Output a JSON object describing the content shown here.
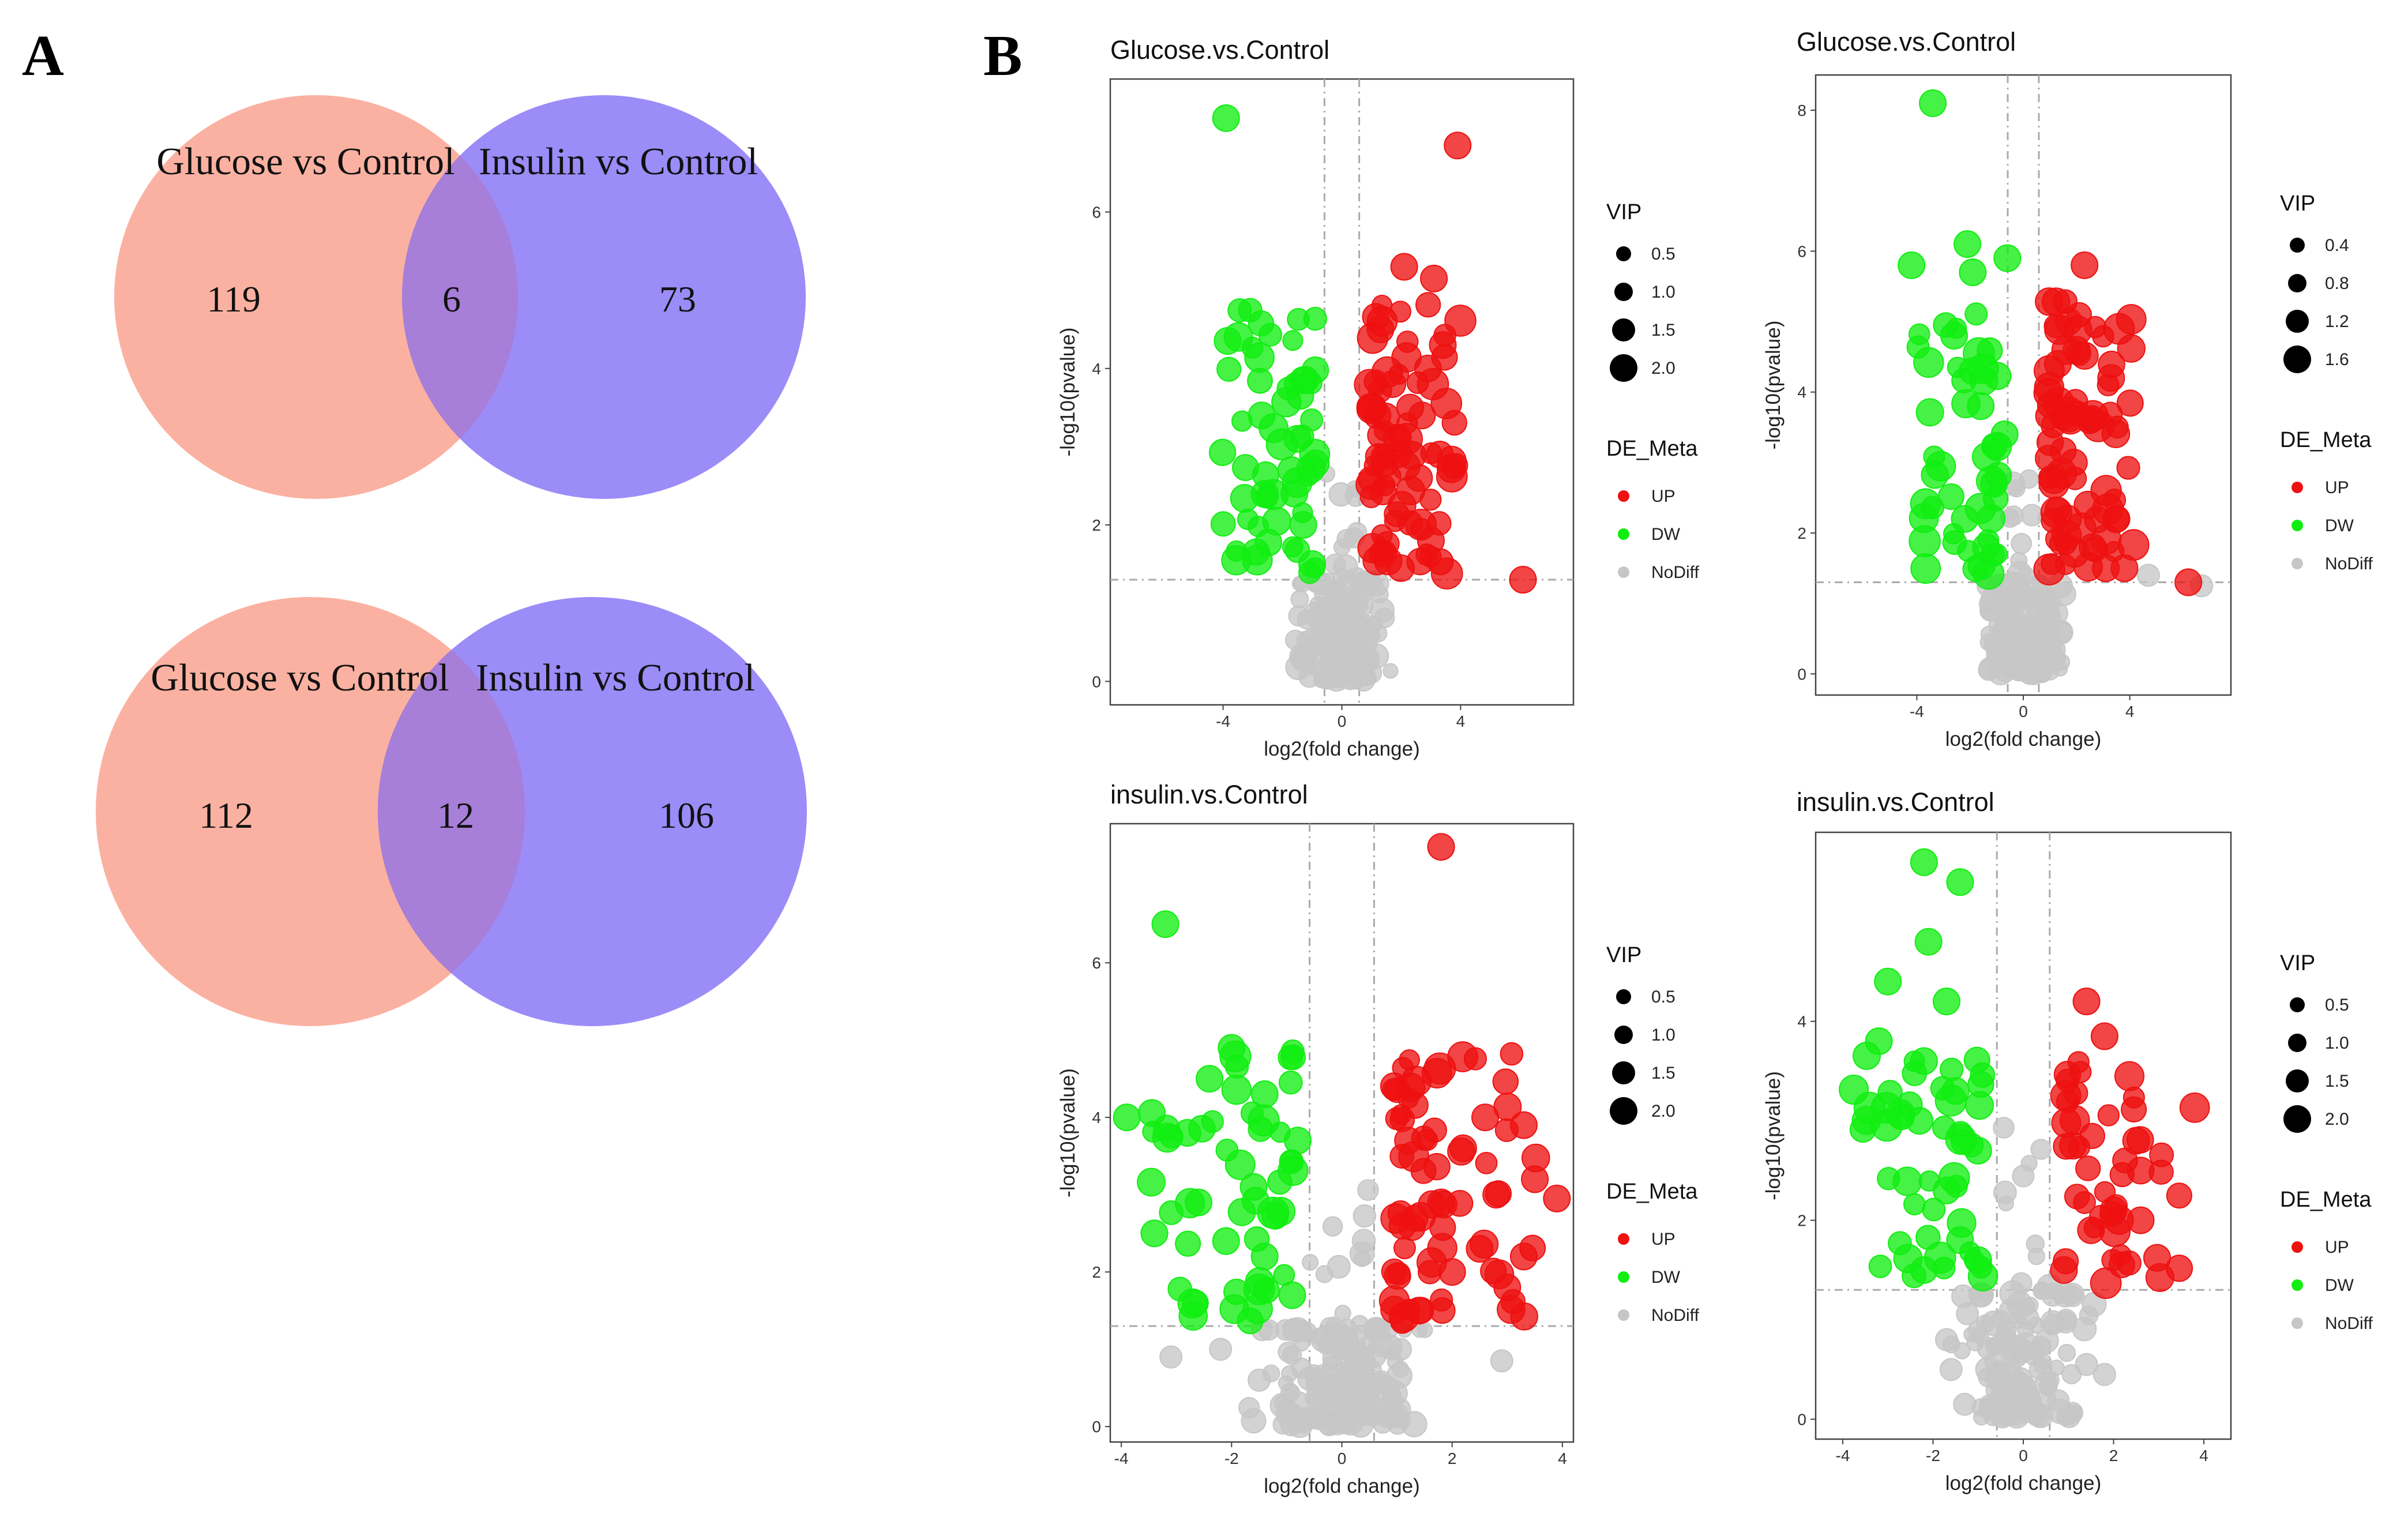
{
  "panels": {
    "A": "A",
    "B": "B"
  },
  "venn": [
    {
      "left_label": "Glucose vs Control",
      "right_label": "Insulin vs Control",
      "left_only": "119",
      "overlap": "6",
      "right_only": "73",
      "left_color": "#fbb1a1",
      "right_color": "#9b8cf8",
      "overlap_color": "#a77ed8"
    },
    {
      "left_label": "Glucose vs Control",
      "right_label": "Insulin vs Control",
      "left_only": "112",
      "overlap": "12",
      "right_only": "106",
      "left_color": "#fbb1a1",
      "right_color": "#9b8cf8",
      "overlap_color": "#a77ed8"
    }
  ],
  "legend": {
    "vip_title": "VIP",
    "de_title": "DE_Meta",
    "up": "UP",
    "dw": "DW",
    "nodiff": "NoDiff"
  },
  "colors": {
    "up": "#ee1111",
    "dw": "#11ee11",
    "nodiff": "#c6c6c6"
  },
  "chart_data": [
    {
      "type": "scatter",
      "title": "Glucose.vs.Control",
      "xlabel": "log2(fold change)",
      "ylabel": "-log10(pvalue)",
      "xlim": [
        -7.8,
        7.8
      ],
      "ylim": [
        -0.3,
        7.7
      ],
      "xticks": [
        -4,
        0,
        4
      ],
      "yticks": [
        0,
        2,
        4,
        6
      ],
      "fc_threshold": 0.585,
      "p_threshold": 1.3,
      "vip_legend": [
        "0.5",
        "1.0",
        "1.5",
        "2.0"
      ],
      "highlights": {
        "up": [
          [
            3.9,
            6.85
          ],
          [
            2.1,
            5.3
          ],
          [
            3.1,
            5.15
          ],
          [
            1.3,
            4.5
          ],
          [
            3.4,
            4.3
          ],
          [
            2.9,
            4.0
          ],
          [
            1.7,
            3.8
          ],
          [
            2.3,
            3.5
          ],
          [
            2.7,
            3.4
          ],
          [
            1.2,
            3.4
          ],
          [
            3.3,
            2.9
          ],
          [
            2.6,
            2.6
          ],
          [
            3.0,
            1.8
          ],
          [
            6.1,
            1.3
          ]
        ],
        "dw": [
          [
            -3.9,
            7.2
          ],
          [
            -1.3,
            3.85
          ],
          [
            -1.4,
            3.65
          ],
          [
            -2.7,
            3.4
          ],
          [
            -1.5,
            3.1
          ],
          [
            -1.7,
            2.7
          ],
          [
            -1.6,
            2.4
          ],
          [
            -1.3,
            2.0
          ],
          [
            -1.0,
            1.5
          ]
        ]
      },
      "counts": {
        "up": 72,
        "dw": 50,
        "nodiff": 170
      }
    },
    {
      "type": "scatter",
      "title": "Glucose.vs.Control",
      "xlabel": "log2(fold change)",
      "ylabel": "-log10(pvalue)",
      "xlim": [
        -7.8,
        7.8
      ],
      "ylim": [
        -0.3,
        8.5
      ],
      "xticks": [
        -4,
        0,
        4
      ],
      "yticks": [
        0,
        2,
        4,
        6,
        8
      ],
      "fc_threshold": 0.585,
      "p_threshold": 1.3,
      "vip_legend": [
        "0.4",
        "0.8",
        "1.2",
        "1.6"
      ],
      "highlights": {
        "up": [
          [
            2.3,
            5.8
          ],
          [
            1.7,
            5.0
          ],
          [
            2.0,
            4.6
          ],
          [
            1.3,
            4.4
          ],
          [
            3.3,
            4.2
          ],
          [
            2.5,
            3.6
          ],
          [
            1.9,
            3.0
          ],
          [
            3.5,
            2.2
          ],
          [
            2.6,
            1.8
          ],
          [
            3.1,
            1.5
          ],
          [
            3.8,
            1.5
          ],
          [
            6.2,
            1.3
          ]
        ],
        "dw": [
          [
            -3.4,
            8.1
          ],
          [
            -2.1,
            6.1
          ],
          [
            -0.6,
            5.9
          ],
          [
            -4.2,
            5.8
          ],
          [
            -1.9,
            5.7
          ],
          [
            -2.6,
            4.8
          ],
          [
            -1.9,
            4.3
          ],
          [
            -1.6,
            3.8
          ],
          [
            -0.7,
            3.4
          ],
          [
            -1.1,
            2.7
          ],
          [
            -2.2,
            2.2
          ],
          [
            -1.4,
            1.8
          ]
        ],
        "nodiff": [
          [
            6.7,
            1.25
          ],
          [
            4.7,
            1.4
          ]
        ]
      },
      "counts": {
        "up": 70,
        "dw": 42,
        "nodiff": 160
      }
    },
    {
      "type": "scatter",
      "title": "insulin.vs.Control",
      "xlabel": "log2(fold change)",
      "ylabel": "-log10(pvalue)",
      "xlim": [
        -4.2,
        4.2
      ],
      "ylim": [
        -0.2,
        7.8
      ],
      "xticks": [
        -4,
        -2,
        0,
        2,
        4
      ],
      "yticks": [
        0,
        2,
        4,
        6
      ],
      "fc_threshold": 0.585,
      "p_threshold": 1.3,
      "vip_legend": [
        "0.5",
        "1.0",
        "1.5",
        "2.0"
      ],
      "highlights": {
        "up": [
          [
            1.8,
            7.5
          ],
          [
            2.6,
            4.0
          ],
          [
            3.3,
            3.9
          ],
          [
            2.2,
            3.6
          ],
          [
            1.2,
            3.7
          ],
          [
            3.5,
            3.2
          ],
          [
            2.8,
            3.0
          ],
          [
            1.8,
            2.9
          ],
          [
            3.9,
            2.95
          ],
          [
            1.1,
            2.6
          ],
          [
            2.5,
            2.3
          ],
          [
            3.3,
            2.2
          ],
          [
            2.0,
            2.0
          ],
          [
            3.0,
            1.8
          ],
          [
            1.4,
            1.5
          ]
        ],
        "dw": [
          [
            -3.2,
            6.5
          ],
          [
            -2.0,
            4.9
          ],
          [
            -3.9,
            4.0
          ],
          [
            -2.4,
            4.5
          ],
          [
            -1.4,
            4.3
          ],
          [
            -2.8,
            3.8
          ],
          [
            -0.8,
            3.7
          ],
          [
            -1.6,
            3.1
          ],
          [
            -2.6,
            2.9
          ],
          [
            -3.4,
            2.5
          ],
          [
            -1.4,
            2.2
          ],
          [
            -2.1,
            2.4
          ],
          [
            -0.9,
            1.7
          ]
        ],
        "nodiff": [
          [
            -2.2,
            1.0
          ],
          [
            -3.1,
            0.9
          ],
          [
            2.9,
            0.85
          ],
          [
            -1.5,
            0.6
          ]
        ]
      },
      "counts": {
        "up": 62,
        "dw": 46,
        "nodiff": 160
      }
    },
    {
      "type": "scatter",
      "title": "insulin.vs.Control",
      "xlabel": "log2(fold change)",
      "ylabel": "-log10(pvalue)",
      "xlim": [
        -4.6,
        4.6
      ],
      "ylim": [
        -0.2,
        5.9
      ],
      "xticks": [
        -4,
        -2,
        0,
        2,
        4
      ],
      "yticks": [
        0,
        2,
        4
      ],
      "fc_threshold": 0.585,
      "p_threshold": 1.3,
      "vip_legend": [
        "0.5",
        "1.0",
        "1.5",
        "2.0"
      ],
      "highlights": {
        "up": [
          [
            1.4,
            4.2
          ],
          [
            1.8,
            3.85
          ],
          [
            2.5,
            2.8
          ],
          [
            1.1,
            2.75
          ],
          [
            2.6,
            2.5
          ],
          [
            2.0,
            2.1
          ],
          [
            1.5,
            1.9
          ],
          [
            2.6,
            2.0
          ],
          [
            0.9,
            1.5
          ]
        ],
        "dw": [
          [
            -2.2,
            5.6
          ],
          [
            -1.4,
            5.4
          ],
          [
            -2.1,
            4.8
          ],
          [
            -3.0,
            4.4
          ],
          [
            -1.7,
            4.2
          ],
          [
            -3.2,
            3.8
          ],
          [
            -2.2,
            3.6
          ],
          [
            -1.5,
            3.3
          ],
          [
            -2.3,
            3.0
          ],
          [
            -1.0,
            2.7
          ],
          [
            -1.7,
            2.3
          ],
          [
            -1.4,
            1.8
          ],
          [
            -1.0,
            1.6
          ],
          [
            -2.2,
            1.5
          ]
        ],
        "nodiff": [
          [
            1.4,
            0.55
          ],
          [
            1.8,
            0.45
          ],
          [
            -1.6,
            0.5
          ],
          [
            -1.3,
            0.15
          ],
          [
            -1.7,
            0.8
          ]
        ]
      },
      "counts": {
        "up": 42,
        "dw": 44,
        "nodiff": 140
      }
    }
  ]
}
